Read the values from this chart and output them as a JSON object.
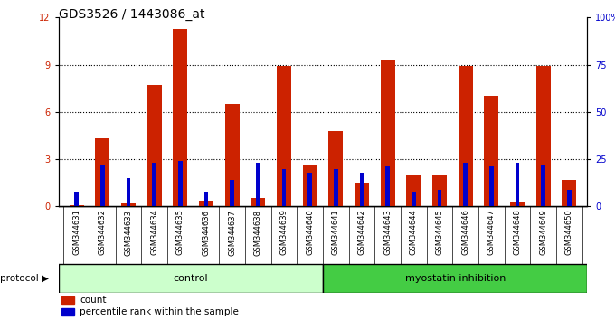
{
  "title": "GDS3526 / 1443086_at",
  "samples": [
    "GSM344631",
    "GSM344632",
    "GSM344633",
    "GSM344634",
    "GSM344635",
    "GSM344636",
    "GSM344637",
    "GSM344638",
    "GSM344639",
    "GSM344640",
    "GSM344641",
    "GSM344642",
    "GSM344643",
    "GSM344644",
    "GSM344645",
    "GSM344646",
    "GSM344647",
    "GSM344648",
    "GSM344649",
    "GSM344650"
  ],
  "count_values": [
    0.05,
    4.3,
    0.2,
    7.7,
    11.3,
    0.35,
    6.5,
    0.55,
    8.9,
    2.6,
    4.8,
    1.5,
    9.3,
    2.0,
    2.0,
    8.9,
    7.0,
    0.3,
    8.9,
    1.7
  ],
  "percentile_values": [
    8,
    22,
    15,
    23,
    24,
    8,
    14,
    23,
    20,
    18,
    20,
    18,
    21,
    8,
    9,
    23,
    21,
    23,
    22,
    9
  ],
  "bar_color": "#cc2200",
  "dot_color": "#0000cc",
  "ylim_left": [
    0,
    12
  ],
  "ylim_right": [
    0,
    100
  ],
  "yticks_left": [
    0,
    3,
    6,
    9,
    12
  ],
  "yticks_right": [
    0,
    25,
    50,
    75,
    100
  ],
  "ytick_right_labels": [
    "0",
    "25",
    "50",
    "75",
    "100%"
  ],
  "bg_color": "#ffffff",
  "plot_bg": "#ffffff",
  "bar_width": 0.55,
  "control_color": "#ccffcc",
  "myostatin_color": "#44cc44",
  "control_label": "control",
  "myostatin_label": "myostatin inhibition",
  "legend_count_label": "count",
  "legend_percentile_label": "percentile rank within the sample",
  "protocol_label": "protocol",
  "xtick_bg": "#cccccc",
  "title_fontsize": 10,
  "tick_fontsize": 7,
  "label_fontsize": 8
}
